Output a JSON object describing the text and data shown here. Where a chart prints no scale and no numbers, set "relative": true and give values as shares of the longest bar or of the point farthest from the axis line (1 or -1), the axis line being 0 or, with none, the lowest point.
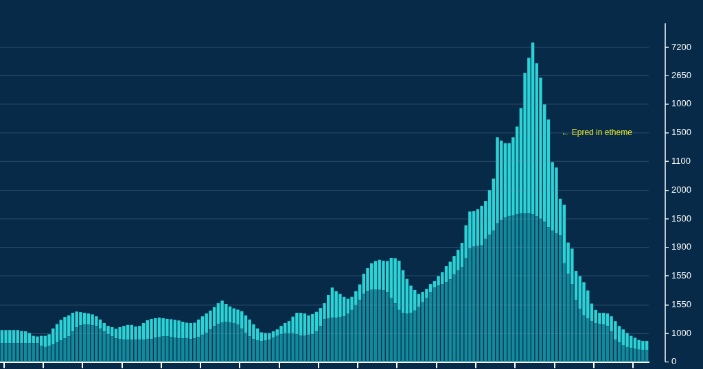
{
  "chart_data": {
    "type": "bar",
    "relative": true,
    "stacked": true,
    "categories": [
      null,
      null,
      null,
      null,
      null,
      null,
      null,
      null,
      null,
      null,
      null,
      null,
      null,
      null,
      null,
      null,
      null,
      null,
      null,
      null,
      null,
      null,
      null,
      null,
      null,
      null,
      null,
      null,
      null,
      null,
      null,
      null,
      null,
      null,
      null,
      null,
      null,
      null,
      null,
      null,
      null,
      null,
      null,
      null,
      null,
      null,
      null,
      null,
      null,
      null,
      null,
      null,
      null,
      null,
      null,
      null,
      null,
      null,
      null,
      null,
      null,
      null,
      null,
      null,
      null,
      null,
      null,
      null,
      null,
      null,
      null,
      null,
      null,
      null,
      null,
      null,
      null,
      null,
      null,
      null,
      null,
      null,
      null,
      null,
      null,
      null,
      null,
      null,
      null,
      null,
      null,
      null,
      null,
      null,
      null,
      null,
      null,
      null,
      null,
      null,
      null,
      null,
      null,
      null,
      null,
      null,
      null,
      null,
      null,
      null,
      null,
      null,
      null,
      null,
      null,
      null,
      null,
      null,
      null,
      null,
      null,
      null,
      null,
      null,
      null,
      null,
      null,
      null,
      null,
      null,
      null,
      null,
      null,
      null,
      null,
      null,
      null,
      null,
      null,
      null,
      null,
      null,
      null,
      null,
      null,
      null,
      null,
      null,
      null,
      null,
      null,
      null,
      null,
      null,
      null,
      null,
      null,
      null,
      null,
      null,
      null,
      null,
      null,
      null,
      null
    ],
    "series": [
      {
        "color": "#128a9c",
        "values": [
          0.059,
          0.059,
          0.059,
          0.059,
          0.059,
          0.059,
          0.059,
          0.059,
          0.059,
          0.059,
          0.05,
          0.047,
          0.05,
          0.055,
          0.061,
          0.067,
          0.074,
          0.081,
          0.096,
          0.108,
          0.115,
          0.117,
          0.117,
          0.115,
          0.113,
          0.105,
          0.096,
          0.087,
          0.081,
          0.074,
          0.072,
          0.07,
          0.07,
          0.07,
          0.07,
          0.07,
          0.07,
          0.072,
          0.072,
          0.076,
          0.078,
          0.081,
          0.081,
          0.078,
          0.076,
          0.074,
          0.074,
          0.074,
          0.072,
          0.074,
          0.078,
          0.085,
          0.091,
          0.102,
          0.113,
          0.119,
          0.124,
          0.126,
          0.124,
          0.122,
          0.117,
          0.105,
          0.091,
          0.081,
          0.072,
          0.067,
          0.065,
          0.067,
          0.07,
          0.076,
          0.082,
          0.087,
          0.09,
          0.09,
          0.09,
          0.087,
          0.082,
          0.082,
          0.085,
          0.087,
          0.096,
          0.113,
          0.134,
          0.137,
          0.139,
          0.139,
          0.141,
          0.143,
          0.152,
          0.163,
          0.178,
          0.195,
          0.213,
          0.222,
          0.226,
          0.226,
          0.226,
          0.224,
          0.218,
          0.2,
          0.184,
          0.163,
          0.154,
          0.152,
          0.154,
          0.161,
          0.172,
          0.187,
          0.2,
          0.218,
          0.233,
          0.239,
          0.244,
          0.25,
          0.259,
          0.274,
          0.286,
          0.298,
          0.326,
          0.356,
          0.361,
          0.363,
          0.365,
          0.385,
          0.398,
          0.411,
          0.434,
          0.443,
          0.452,
          0.457,
          0.458,
          0.463,
          0.465,
          0.465,
          0.465,
          0.463,
          0.457,
          0.449,
          0.439,
          0.422,
          0.411,
          0.402,
          0.396,
          0.309,
          0.276,
          0.244,
          0.195,
          0.167,
          0.146,
          0.137,
          0.128,
          0.122,
          0.119,
          0.117,
          0.113,
          0.096,
          0.07,
          0.061,
          0.052,
          0.047,
          0.044,
          0.041,
          0.039,
          0.037,
          0.037
        ]
      },
      {
        "color": "#2bd3d6",
        "values": [
          0.041,
          0.041,
          0.041,
          0.041,
          0.041,
          0.038,
          0.037,
          0.032,
          0.023,
          0.021,
          0.032,
          0.035,
          0.037,
          0.05,
          0.058,
          0.065,
          0.067,
          0.065,
          0.058,
          0.05,
          0.041,
          0.037,
          0.035,
          0.034,
          0.03,
          0.028,
          0.026,
          0.026,
          0.028,
          0.03,
          0.037,
          0.043,
          0.046,
          0.046,
          0.041,
          0.043,
          0.052,
          0.059,
          0.063,
          0.061,
          0.061,
          0.056,
          0.054,
          0.056,
          0.056,
          0.056,
          0.052,
          0.049,
          0.05,
          0.049,
          0.055,
          0.058,
          0.061,
          0.059,
          0.059,
          0.065,
          0.068,
          0.056,
          0.05,
          0.046,
          0.047,
          0.054,
          0.055,
          0.052,
          0.046,
          0.038,
          0.028,
          0.024,
          0.021,
          0.02,
          0.02,
          0.026,
          0.032,
          0.038,
          0.052,
          0.067,
          0.072,
          0.07,
          0.061,
          0.063,
          0.061,
          0.056,
          0.05,
          0.073,
          0.094,
          0.083,
          0.072,
          0.061,
          0.046,
          0.041,
          0.044,
          0.048,
          0.063,
          0.072,
          0.083,
          0.09,
          0.094,
          0.093,
          0.098,
          0.126,
          0.141,
          0.154,
          0.133,
          0.108,
          0.085,
          0.064,
          0.041,
          0.032,
          0.029,
          0.026,
          0.02,
          0.03,
          0.037,
          0.05,
          0.055,
          0.058,
          0.065,
          0.075,
          0.102,
          0.115,
          0.111,
          0.115,
          0.124,
          0.119,
          0.14,
          0.163,
          0.269,
          0.25,
          0.233,
          0.228,
          0.245,
          0.274,
          0.33,
          0.44,
          0.487,
          0.537,
          0.478,
          0.441,
          0.367,
          0.337,
          0.215,
          0.207,
          0.115,
          0.183,
          0.098,
          0.111,
          0.09,
          0.102,
          0.104,
          0.087,
          0.055,
          0.041,
          0.035,
          0.037,
          0.039,
          0.047,
          0.058,
          0.052,
          0.05,
          0.044,
          0.038,
          0.035,
          0.03,
          0.029,
          0.029
        ]
      }
    ],
    "legend": false,
    "ref_lines": [
      {
        "axis": "y",
        "value": 0.985
      },
      {
        "axis": "y",
        "value": 0.896
      },
      {
        "axis": "y",
        "value": 0.807
      },
      {
        "axis": "y",
        "value": 0.717
      },
      {
        "axis": "y",
        "value": 0.628
      },
      {
        "axis": "y",
        "value": 0.537
      },
      {
        "axis": "y",
        "value": 0.448
      },
      {
        "axis": "y",
        "value": 0.359
      },
      {
        "axis": "y",
        "value": 0.27
      },
      {
        "axis": "y",
        "value": 0.178
      },
      {
        "axis": "y",
        "value": 0.089
      }
    ],
    "annotations": [
      "7200",
      "2650",
      "1000",
      "1500",
      "1100",
      "2000",
      "1500",
      "1900",
      "1550",
      "1550",
      "1000",
      "0",
      "← Epred in etheme"
    ]
  }
}
